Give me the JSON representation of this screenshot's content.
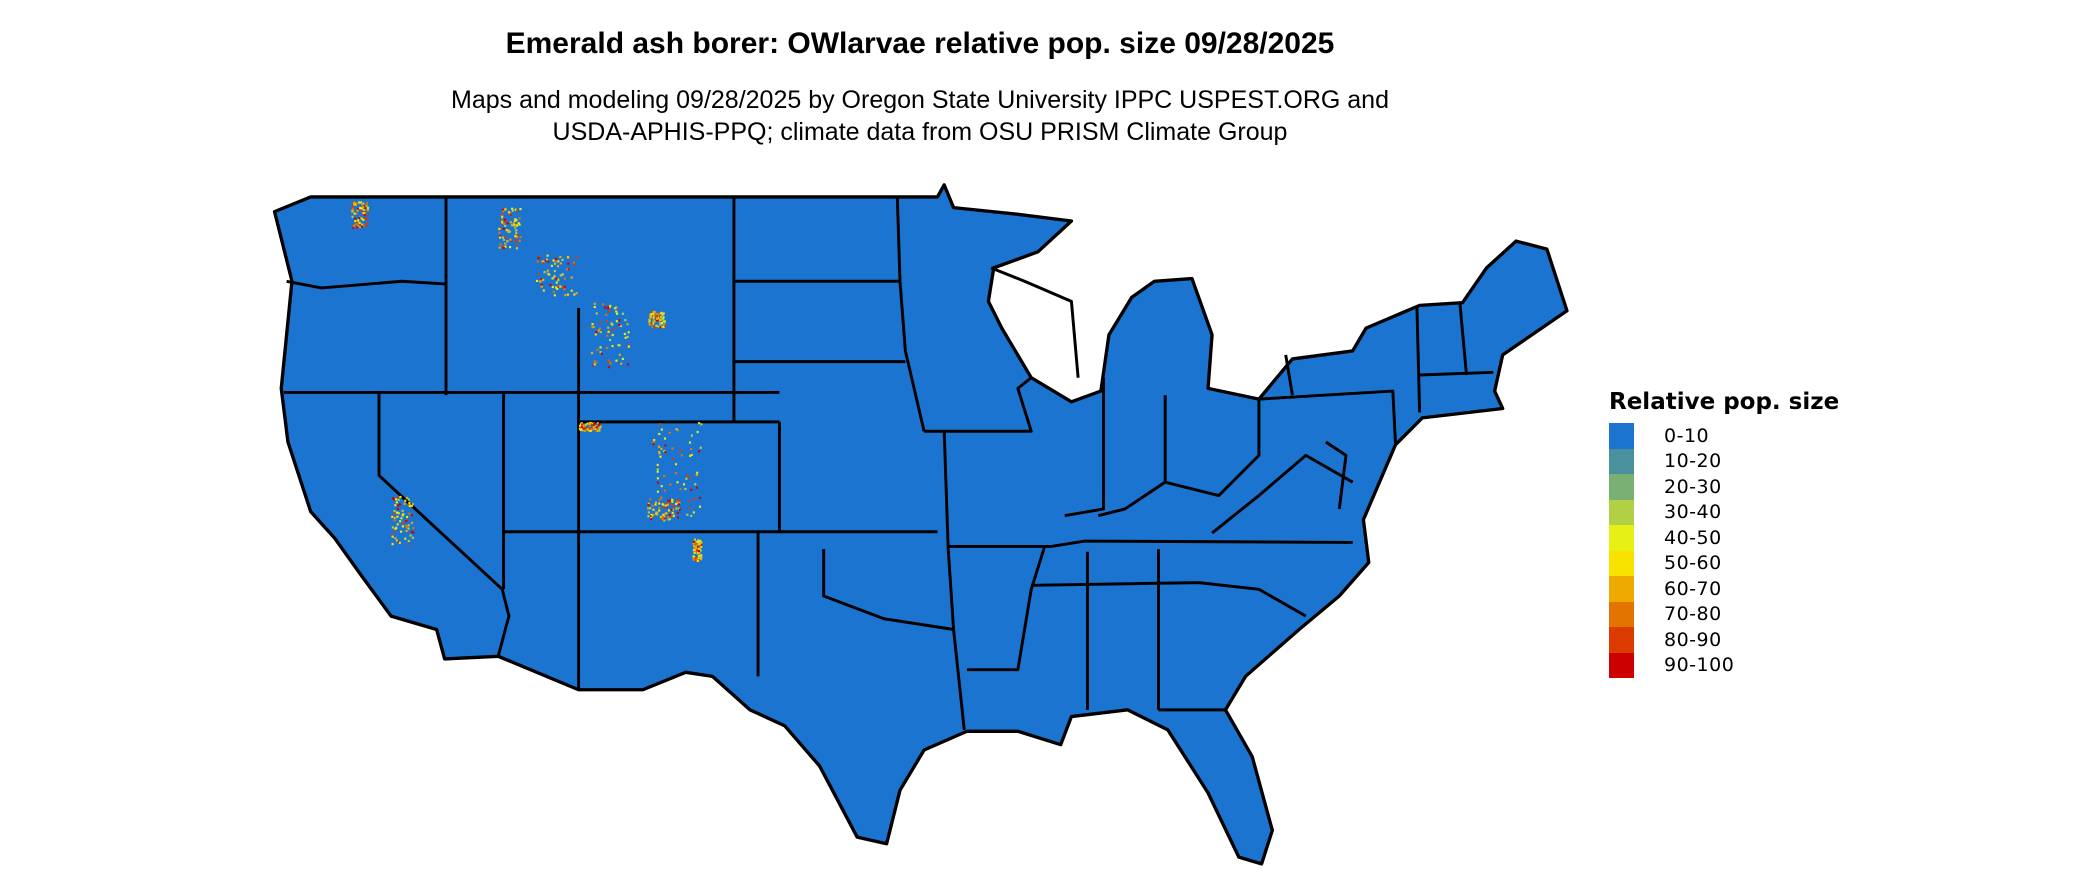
{
  "title": "Emerald ash borer: OWlarvae relative pop. size 09/28/2025",
  "subtitle_line1": "Maps and modeling 09/28/2025 by Oregon State University IPPC USPEST.ORG and",
  "subtitle_line2": "USDA-APHIS-PPQ; climate data from OSU PRISM Climate Group",
  "map": {
    "region": "Contiguous United States",
    "base_color": "#1b75d0",
    "border_color": "#000000"
  },
  "legend": {
    "title": "Relative pop. size",
    "items": [
      {
        "label": "0-10",
        "color": "#1b75d0"
      },
      {
        "label": "10-20",
        "color": "#4a919d"
      },
      {
        "label": "20-30",
        "color": "#7bb075"
      },
      {
        "label": "30-40",
        "color": "#b2d046"
      },
      {
        "label": "40-50",
        "color": "#e6f014"
      },
      {
        "label": "50-60",
        "color": "#f8e200"
      },
      {
        "label": "60-70",
        "color": "#efaa00"
      },
      {
        "label": "70-80",
        "color": "#e47400"
      },
      {
        "label": "80-90",
        "color": "#db3a00"
      },
      {
        "label": "90-100",
        "color": "#cc0000"
      }
    ]
  }
}
